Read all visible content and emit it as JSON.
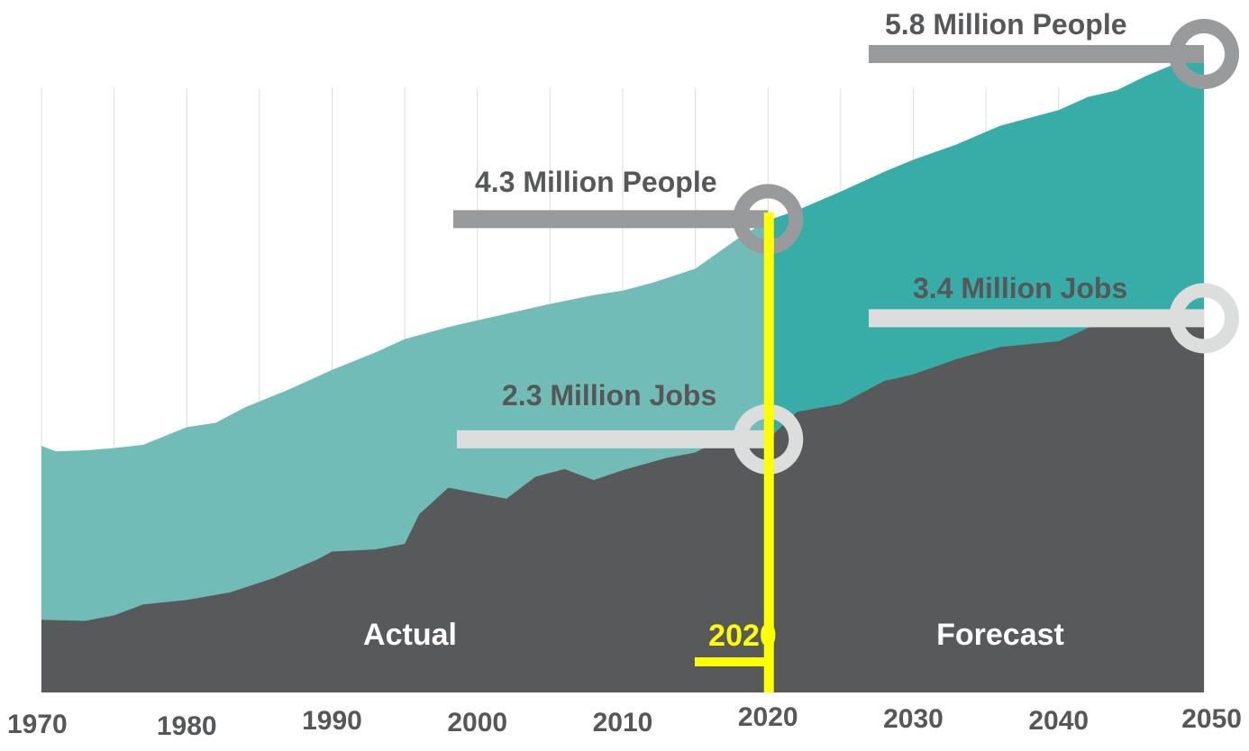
{
  "chart_data": {
    "type": "area",
    "title": "",
    "xlabel": "",
    "ylabel": "",
    "x_ticks": [
      "1970",
      "1980",
      "1990",
      "2000",
      "2010",
      "2020",
      "2030",
      "2040",
      "2050"
    ],
    "xlim": [
      1970,
      2050
    ],
    "ylim": [
      0,
      6
    ],
    "units": "millions",
    "split_year": 2020,
    "split_label": "2020",
    "zone_labels": {
      "before": "Actual",
      "after": "Forecast"
    },
    "series": [
      {
        "name": "People",
        "unit": "million people",
        "color_actual": "#71bcb7",
        "color_forecast": "#38ada7",
        "points": [
          [
            1970,
            2.24
          ],
          [
            1971,
            2.19
          ],
          [
            1973,
            2.2
          ],
          [
            1975,
            2.22
          ],
          [
            1977,
            2.25
          ],
          [
            1980,
            2.41
          ],
          [
            1982,
            2.45
          ],
          [
            1984,
            2.59
          ],
          [
            1987,
            2.75
          ],
          [
            1990,
            2.93
          ],
          [
            1993,
            3.09
          ],
          [
            1995,
            3.21
          ],
          [
            1998,
            3.32
          ],
          [
            2000,
            3.38
          ],
          [
            2002,
            3.44
          ],
          [
            2005,
            3.53
          ],
          [
            2008,
            3.61
          ],
          [
            2010,
            3.65
          ],
          [
            2012,
            3.72
          ],
          [
            2015,
            3.85
          ],
          [
            2018,
            4.13
          ],
          [
            2020,
            4.29
          ],
          [
            2022,
            4.38
          ],
          [
            2025,
            4.55
          ],
          [
            2028,
            4.73
          ],
          [
            2030,
            4.84
          ],
          [
            2033,
            4.98
          ],
          [
            2036,
            5.15
          ],
          [
            2040,
            5.29
          ],
          [
            2042,
            5.41
          ],
          [
            2044,
            5.47
          ],
          [
            2046,
            5.6
          ],
          [
            2048,
            5.71
          ],
          [
            2050,
            5.8
          ]
        ]
      },
      {
        "name": "Jobs",
        "unit": "million jobs",
        "color": "#58595b",
        "points": [
          [
            1970,
            0.66
          ],
          [
            1973,
            0.65
          ],
          [
            1975,
            0.7
          ],
          [
            1977,
            0.8
          ],
          [
            1980,
            0.84
          ],
          [
            1983,
            0.91
          ],
          [
            1986,
            1.04
          ],
          [
            1989,
            1.21
          ],
          [
            1990,
            1.28
          ],
          [
            1993,
            1.3
          ],
          [
            1995,
            1.35
          ],
          [
            1996,
            1.62
          ],
          [
            1998,
            1.86
          ],
          [
            2000,
            1.81
          ],
          [
            2002,
            1.76
          ],
          [
            2004,
            1.96
          ],
          [
            2006,
            2.03
          ],
          [
            2008,
            1.93
          ],
          [
            2010,
            2.02
          ],
          [
            2013,
            2.13
          ],
          [
            2015,
            2.18
          ],
          [
            2017,
            2.32
          ],
          [
            2020,
            2.3
          ],
          [
            2022,
            2.55
          ],
          [
            2025,
            2.62
          ],
          [
            2028,
            2.83
          ],
          [
            2030,
            2.89
          ],
          [
            2033,
            3.03
          ],
          [
            2036,
            3.14
          ],
          [
            2040,
            3.19
          ],
          [
            2042,
            3.31
          ],
          [
            2044,
            3.38
          ],
          [
            2046,
            3.42
          ],
          [
            2048,
            3.37
          ],
          [
            2050,
            3.4
          ]
        ]
      }
    ],
    "annotations": [
      {
        "text": "5.8 Million People",
        "series": "People",
        "year": 2050,
        "value": 5.8
      },
      {
        "text": "4.3 Million People",
        "series": "People",
        "year": 2020,
        "value": 4.3
      },
      {
        "text": "3.4 Million Jobs",
        "series": "Jobs",
        "year": 2050,
        "value": 3.4
      },
      {
        "text": "2.3 Million Jobs",
        "series": "Jobs",
        "year": 2020,
        "value": 2.3
      }
    ],
    "colors": {
      "people_callout": "#999a9c",
      "jobs_callout": "#dcdddd",
      "marker": "#ffff00",
      "gridline": "#dcdcdc",
      "text": "#555759"
    }
  }
}
